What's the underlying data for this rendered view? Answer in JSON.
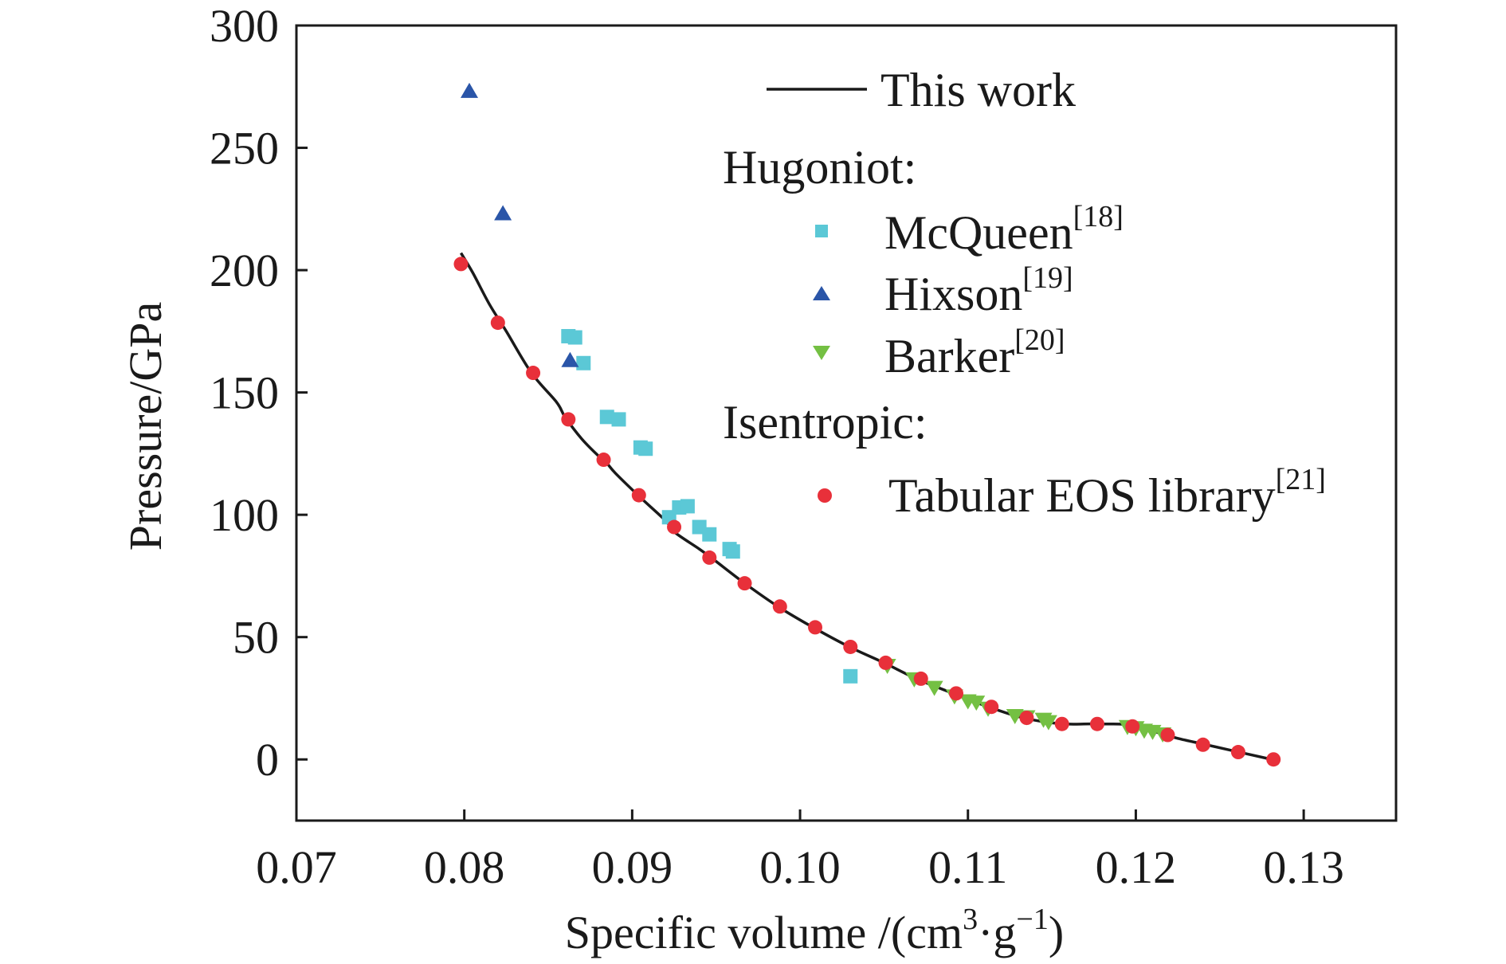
{
  "chart_data": {
    "type": "scatter",
    "title": "",
    "xlabel": "Specific volume /(cm³·g⁻¹)",
    "xlabel_parts": {
      "main": "Specific volume /(cm",
      "sup1": "3",
      "mid": "·g",
      "sup2": "−1",
      "end": ")"
    },
    "ylabel": "Pressure/GPa",
    "xlim": [
      0.07,
      0.1355
    ],
    "ylim": [
      -25,
      300
    ],
    "xticks": [
      0.07,
      0.08,
      0.09,
      0.1,
      0.11,
      0.12,
      0.13
    ],
    "xtick_labels": [
      "0.07",
      "0.08",
      "0.09",
      "0.10",
      "0.11",
      "0.12",
      "0.13"
    ],
    "yticks": [
      0,
      50,
      100,
      150,
      200,
      250,
      300
    ],
    "ytick_labels": [
      "0",
      "50",
      "100",
      "150",
      "200",
      "250",
      "300"
    ],
    "grid": false,
    "legend_position": "top-right",
    "legend_groups": {
      "hugoniot": "Hugoniot:",
      "isentropic": "Isentropic:"
    },
    "series": [
      {
        "name": "This work",
        "kind": "line",
        "color": "#1a1a1a",
        "x": [
          0.0798,
          0.0805,
          0.0815,
          0.0825,
          0.084,
          0.0855,
          0.086,
          0.087,
          0.088,
          0.0885,
          0.089,
          0.0905,
          0.092,
          0.0925,
          0.094,
          0.0948,
          0.0967,
          0.0988,
          0.1009,
          0.103,
          0.105,
          0.107,
          0.1093,
          0.1113,
          0.1133,
          0.1155,
          0.1175,
          0.1198,
          0.1213,
          0.1225,
          0.1242,
          0.1262,
          0.1281
        ],
        "y": [
          207,
          199,
          186,
          175,
          158,
          146,
          140,
          131,
          124,
          121,
          117,
          107,
          97.5,
          93,
          86,
          82,
          72,
          62,
          53.5,
          45.8,
          39.5,
          32.8,
          26.5,
          21.3,
          17,
          14.6,
          14.5,
          14.1,
          11,
          8.6,
          6.0,
          2.9,
          0
        ]
      },
      {
        "name": "McQueen",
        "ref": "[18]",
        "kind": "square",
        "color": "#5bc8d6",
        "x": [
          0.0862,
          0.0866,
          0.0871,
          0.0885,
          0.0892,
          0.0905,
          0.0908,
          0.0922,
          0.0928,
          0.0933,
          0.094,
          0.0946,
          0.0958,
          0.096,
          0.103
        ],
        "y": [
          173,
          172.5,
          162,
          140,
          139,
          127.5,
          127,
          99,
          103,
          103.5,
          95,
          92,
          86,
          85,
          34
        ]
      },
      {
        "name": "Hixson",
        "ref": "[19]",
        "kind": "triangle-up",
        "color": "#2a55a8",
        "x": [
          0.0803,
          0.0823,
          0.0863
        ],
        "y": [
          273,
          223,
          163
        ]
      },
      {
        "name": "Barker",
        "ref": "[20]",
        "kind": "triangle-down",
        "color": "#74c043",
        "x": [
          0.1052,
          0.1068,
          0.108,
          0.1092,
          0.11,
          0.1105,
          0.1112,
          0.1128,
          0.1135,
          0.1145,
          0.1148,
          0.1195,
          0.12,
          0.1205,
          0.121,
          0.1216
        ],
        "y": [
          38.5,
          33,
          29.5,
          26,
          24,
          23.5,
          21,
          18,
          17.5,
          16.5,
          15.5,
          13.5,
          13,
          12,
          11.5,
          10.5
        ]
      },
      {
        "name": "Tabular EOS library",
        "ref": "[21]",
        "kind": "circle",
        "color": "#e8303a",
        "x": [
          0.0798,
          0.082,
          0.0841,
          0.0862,
          0.0883,
          0.0904,
          0.0925,
          0.0946,
          0.0967,
          0.0988,
          0.1009,
          0.103,
          0.1051,
          0.1072,
          0.1093,
          0.1114,
          0.1135,
          0.1156,
          0.1177,
          0.1198,
          0.1219,
          0.124,
          0.1261,
          0.1282
        ],
        "y": [
          202.5,
          178.5,
          158,
          139,
          122.5,
          108,
          95,
          82.5,
          72,
          62.5,
          54,
          46,
          39.5,
          33,
          27,
          21.5,
          17,
          14.5,
          14.5,
          13.5,
          10,
          6,
          3,
          0
        ]
      }
    ]
  }
}
